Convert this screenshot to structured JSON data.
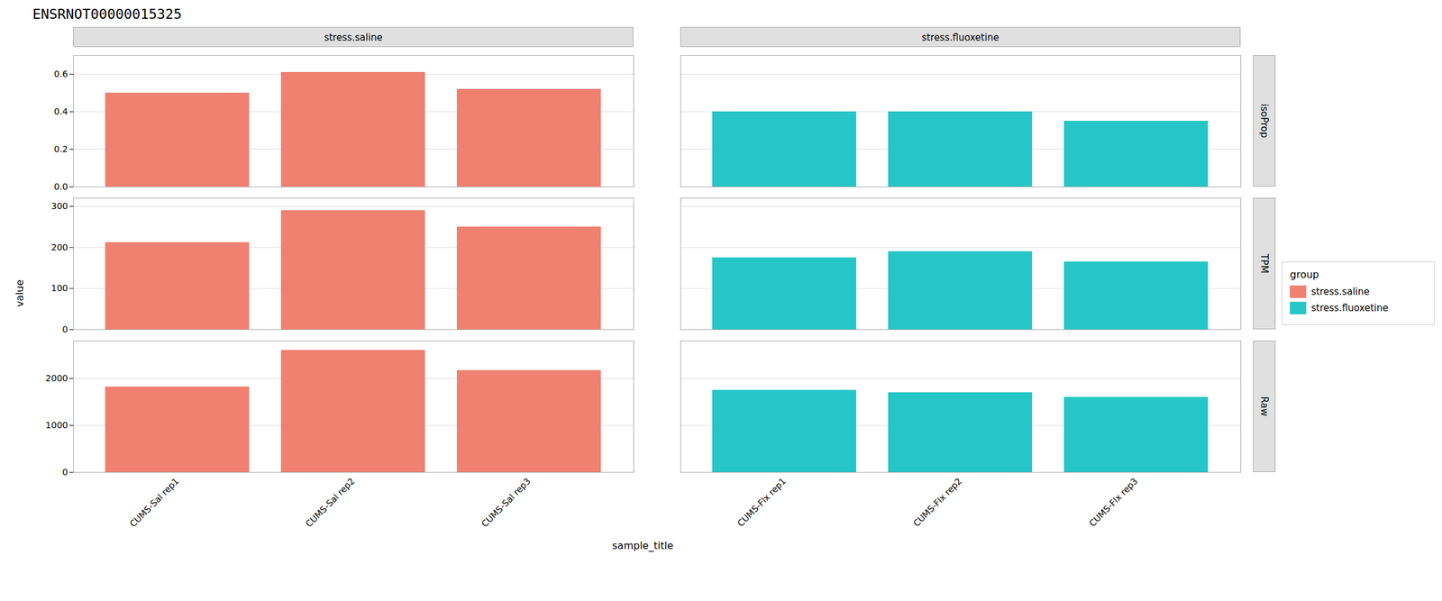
{
  "chart_data": {
    "type": "bar",
    "title": "ENSRNOT00000015325",
    "xlabel": "sample_title",
    "ylabel": "value",
    "grid": true,
    "legend": "right",
    "legend_title": "group",
    "columns": [
      {
        "name": "stress.saline",
        "color": "#F08070",
        "categories": [
          "CUMS-Sal rep1",
          "CUMS-Sal rep2",
          "CUMS-Sal rep3"
        ]
      },
      {
        "name": "stress.fluoxetine",
        "color": "#26C6C6",
        "categories": [
          "CUMS-Flx rep1",
          "CUMS-Flx rep2",
          "CUMS-Flx rep3"
        ]
      }
    ],
    "rows": [
      {
        "name": "isoProp",
        "ylim": [
          0,
          0.7
        ],
        "yticks": [
          {
            "value": 0,
            "label": "0.0"
          },
          0.2,
          0.4,
          0.6
        ],
        "series": [
          {
            "name": "stress.saline",
            "values": [
              0.5,
              0.61,
              0.52
            ]
          },
          {
            "name": "stress.fluoxetine",
            "values": [
              0.4,
              0.4,
              0.35
            ]
          }
        ]
      },
      {
        "name": "TPM",
        "ylim": [
          0,
          320
        ],
        "yticks": [
          0,
          100,
          200,
          300
        ],
        "series": [
          {
            "name": "stress.saline",
            "values": [
              212,
              290,
              250
            ]
          },
          {
            "name": "stress.fluoxetine",
            "values": [
              175,
              190,
              165
            ]
          }
        ]
      },
      {
        "name": "Raw",
        "ylim": [
          0,
          2800
        ],
        "yticks": [
          0,
          1000,
          2000
        ],
        "series": [
          {
            "name": "stress.saline",
            "values": [
              1820,
              2600,
              2170
            ]
          },
          {
            "name": "stress.fluoxetine",
            "values": [
              1750,
              1700,
              1600
            ]
          }
        ]
      }
    ]
  }
}
